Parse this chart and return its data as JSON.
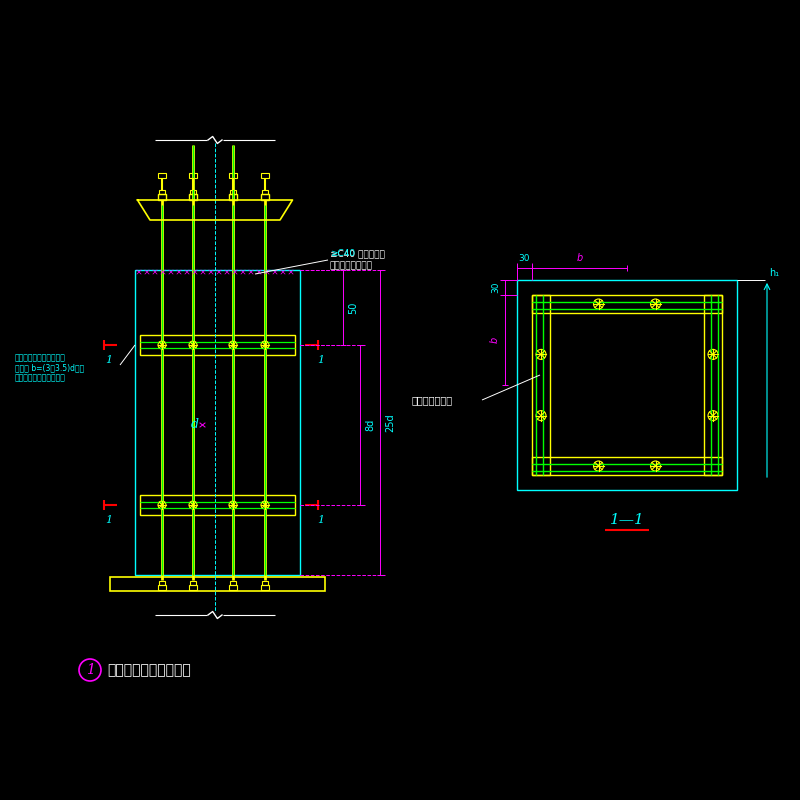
{
  "bg_color": "#000000",
  "cyan": "#00FFFF",
  "yellow": "#FFFF00",
  "green": "#00FF00",
  "white": "#FFFFFF",
  "magenta": "#FF00FF",
  "red": "#FF0000",
  "title": "柱脚锚栓固定支架详图",
  "section_label": "1—1",
  "label1_line1": "≥C40 无收缩细石",
  "label1_line2": "混凝土或铁屑沙浆",
  "label2_line1": "锁栅固定架角锂，通常角",
  "label2_line2": "锂肢宽 b=(3～3.5)d，厕",
  "label2_line3": "厅取相应型号中之最厕者",
  "label3": "锁栅固定架角锂",
  "dim_50": "50",
  "dim_8d": "8d",
  "dim_25d": "25d",
  "dim_d": "d",
  "dim_30top": "30",
  "dim_b_top": "b",
  "dim_30left": "30",
  "dim_b_left": "b",
  "dim_h1": "h₁",
  "fig_number": "1"
}
